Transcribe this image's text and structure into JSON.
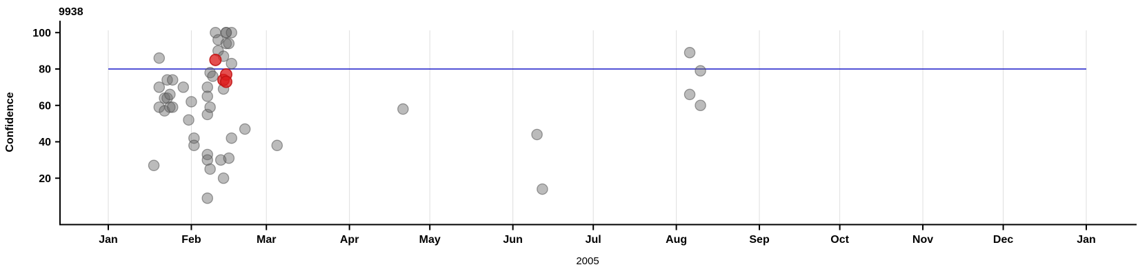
{
  "chart_data": {
    "type": "scatter",
    "title": "9938",
    "ylabel": "Confidence",
    "xlabel": "2005",
    "x_axis": {
      "unit": "date",
      "start_date": "2005-01-01",
      "end_date": "2006-01-01",
      "tick_labels": [
        "Jan",
        "Feb",
        "Mar",
        "Apr",
        "May",
        "Jun",
        "Jul",
        "Aug",
        "Sep",
        "Oct",
        "Nov",
        "Dec",
        "Jan"
      ],
      "grid": "vertical-line-at-each-month-start"
    },
    "y_axis": {
      "tick_values": [
        20,
        40,
        60,
        80,
        100
      ],
      "visible_range": [
        -6,
        106
      ]
    },
    "reference_line": {
      "value": 80,
      "color": "#1a1ac8"
    },
    "legend": "none",
    "colors": {
      "point_fill": "#696969",
      "point_fill_opacity": 0.45,
      "point_stroke": "#505050",
      "point_stroke_opacity": 0.55,
      "highlight_fill": "#dc1e1e",
      "highlight_fill_opacity": 0.78,
      "highlight_stroke": "#c01414",
      "gridline": "#dedede",
      "axis": "#000000"
    },
    "series": [
      {
        "name": "observations",
        "points": [
          {
            "date": "2005-01-18",
            "confidence": 27
          },
          {
            "date": "2005-01-20",
            "confidence": 86
          },
          {
            "date": "2005-01-20",
            "confidence": 70
          },
          {
            "date": "2005-01-20",
            "confidence": 59
          },
          {
            "date": "2005-01-22",
            "confidence": 64
          },
          {
            "date": "2005-01-23",
            "confidence": 64
          },
          {
            "date": "2005-01-22",
            "confidence": 57
          },
          {
            "date": "2005-01-23",
            "confidence": 74
          },
          {
            "date": "2005-01-25",
            "confidence": 74
          },
          {
            "date": "2005-01-24",
            "confidence": 66
          },
          {
            "date": "2005-01-24",
            "confidence": 59
          },
          {
            "date": "2005-01-25",
            "confidence": 59
          },
          {
            "date": "2005-01-29",
            "confidence": 70
          },
          {
            "date": "2005-01-31",
            "confidence": 52
          },
          {
            "date": "2005-02-01",
            "confidence": 62
          },
          {
            "date": "2005-02-02",
            "confidence": 42
          },
          {
            "date": "2005-02-02",
            "confidence": 38
          },
          {
            "date": "2005-02-07",
            "confidence": 70
          },
          {
            "date": "2005-02-07",
            "confidence": 65
          },
          {
            "date": "2005-02-07",
            "confidence": 55
          },
          {
            "date": "2005-02-07",
            "confidence": 33
          },
          {
            "date": "2005-02-07",
            "confidence": 30
          },
          {
            "date": "2005-02-07",
            "confidence": 9
          },
          {
            "date": "2005-02-08",
            "confidence": 78
          },
          {
            "date": "2005-02-08",
            "confidence": 59
          },
          {
            "date": "2005-02-08",
            "confidence": 25
          },
          {
            "date": "2005-02-09",
            "confidence": 76
          },
          {
            "date": "2005-02-10",
            "confidence": 100
          },
          {
            "date": "2005-02-11",
            "confidence": 96
          },
          {
            "date": "2005-02-11",
            "confidence": 90
          },
          {
            "date": "2005-02-12",
            "confidence": 30
          },
          {
            "date": "2005-02-13",
            "confidence": 87
          },
          {
            "date": "2005-02-13",
            "confidence": 69
          },
          {
            "date": "2005-02-13",
            "confidence": 20
          },
          {
            "date": "2005-02-14",
            "confidence": 100
          },
          {
            "date": "2005-02-14",
            "confidence": 100
          },
          {
            "date": "2005-02-14",
            "confidence": 94
          },
          {
            "date": "2005-02-15",
            "confidence": 94
          },
          {
            "date": "2005-02-15",
            "confidence": 31
          },
          {
            "date": "2005-02-16",
            "confidence": 100
          },
          {
            "date": "2005-02-16",
            "confidence": 83
          },
          {
            "date": "2005-02-16",
            "confidence": 42
          },
          {
            "date": "2005-02-21",
            "confidence": 47
          },
          {
            "date": "2005-03-05",
            "confidence": 38
          },
          {
            "date": "2005-04-21",
            "confidence": 58
          },
          {
            "date": "2005-06-10",
            "confidence": 44
          },
          {
            "date": "2005-06-12",
            "confidence": 14
          },
          {
            "date": "2005-08-06",
            "confidence": 89
          },
          {
            "date": "2005-08-06",
            "confidence": 66
          },
          {
            "date": "2005-08-10",
            "confidence": 79
          },
          {
            "date": "2005-08-10",
            "confidence": 60
          }
        ]
      },
      {
        "name": "highlighted",
        "points": [
          {
            "date": "2005-02-10",
            "confidence": 85
          },
          {
            "date": "2005-02-13",
            "confidence": 74
          },
          {
            "date": "2005-02-14",
            "confidence": 77
          },
          {
            "date": "2005-02-14",
            "confidence": 73
          }
        ]
      }
    ]
  }
}
